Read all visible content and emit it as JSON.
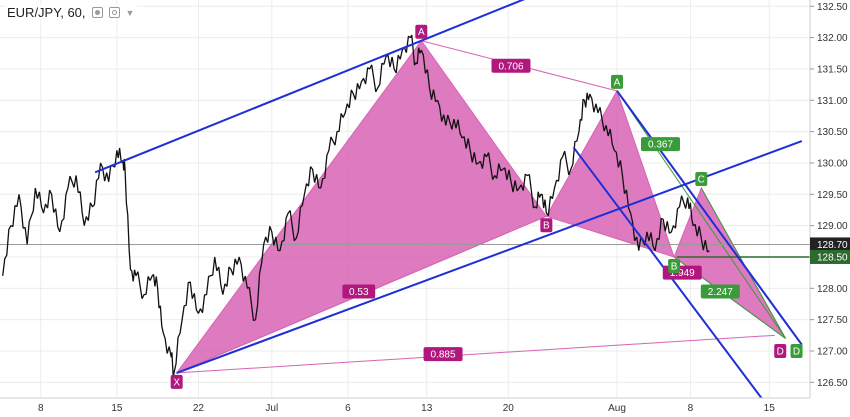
{
  "header": {
    "symbol": "EUR/JPY, 60,"
  },
  "chart_data": {
    "type": "line",
    "style": "candlestick-approx",
    "ylim": [
      126.25,
      132.6
    ],
    "y_ticks": [
      "126.50",
      "127.00",
      "127.50",
      "128.00",
      "128.50",
      "129.00",
      "129.50",
      "130.00",
      "130.50",
      "131.00",
      "131.50",
      "132.00",
      "132.50"
    ],
    "y_tick_values": [
      126.5,
      127,
      127.5,
      128,
      128.5,
      129,
      129.5,
      130,
      130.5,
      131,
      131.5,
      132,
      132.5
    ],
    "x_ticks": [
      "8",
      "15",
      "22",
      "Jul",
      "6",
      "13",
      "20",
      "Aug",
      "8",
      "15"
    ],
    "x_tick_values": [
      2.0,
      4.8,
      7.8,
      10.5,
      13.3,
      16.2,
      19.2,
      23.2,
      25.9,
      28.8
    ],
    "xlim": [
      0.5,
      30.3
    ],
    "price_labels": [
      {
        "text": "128.70",
        "value": 128.7,
        "color": "#222222"
      },
      {
        "text": "128.50",
        "value": 128.5,
        "color": "#2d6a2d"
      }
    ],
    "hline_values": [
      128.7,
      128.5
    ],
    "price_series": [
      [
        0.6,
        128.2
      ],
      [
        0.9,
        129.0
      ],
      [
        1.2,
        129.5
      ],
      [
        1.5,
        128.7
      ],
      [
        1.8,
        129.6
      ],
      [
        2.1,
        129.2
      ],
      [
        2.4,
        129.5
      ],
      [
        2.7,
        128.9
      ],
      [
        3.0,
        129.6
      ],
      [
        3.3,
        129.8
      ],
      [
        3.6,
        129.0
      ],
      [
        3.9,
        129.3
      ],
      [
        4.2,
        130.0
      ],
      [
        4.5,
        129.7
      ],
      [
        4.8,
        130.2
      ],
      [
        5.0,
        130.0
      ],
      [
        5.1,
        129.9
      ],
      [
        5.3,
        128.3
      ],
      [
        5.5,
        128.2
      ],
      [
        5.8,
        127.9
      ],
      [
        6.1,
        128.2
      ],
      [
        6.3,
        128.0
      ],
      [
        6.5,
        127.3
      ],
      [
        6.8,
        126.9
      ],
      [
        6.9,
        126.65
      ],
      [
        7.2,
        127.5
      ],
      [
        7.5,
        128.1
      ],
      [
        7.8,
        127.6
      ],
      [
        8.1,
        127.9
      ],
      [
        8.4,
        128.5
      ],
      [
        8.7,
        127.9
      ],
      [
        9.0,
        128.3
      ],
      [
        9.3,
        128.5
      ],
      [
        9.6,
        128.0
      ],
      [
        9.9,
        127.5
      ],
      [
        10.2,
        128.7
      ],
      [
        10.5,
        128.9
      ],
      [
        10.8,
        128.6
      ],
      [
        11.1,
        129.2
      ],
      [
        11.4,
        128.8
      ],
      [
        11.7,
        129.5
      ],
      [
        12.0,
        129.9
      ],
      [
        12.3,
        129.6
      ],
      [
        12.6,
        130.2
      ],
      [
        12.9,
        130.5
      ],
      [
        13.2,
        130.8
      ],
      [
        13.5,
        131.1
      ],
      [
        13.8,
        131.3
      ],
      [
        14.1,
        131.5
      ],
      [
        14.4,
        131.2
      ],
      [
        14.7,
        131.7
      ],
      [
        15.0,
        131.5
      ],
      [
        15.3,
        131.8
      ],
      [
        15.6,
        132.0
      ],
      [
        15.8,
        131.6
      ],
      [
        16.0,
        131.8
      ],
      [
        16.3,
        131.2
      ],
      [
        16.6,
        131.0
      ],
      [
        16.9,
        130.6
      ],
      [
        17.2,
        130.7
      ],
      [
        17.5,
        130.4
      ],
      [
        17.8,
        130.2
      ],
      [
        18.1,
        130.0
      ],
      [
        18.4,
        130.1
      ],
      [
        18.7,
        129.8
      ],
      [
        19.0,
        129.9
      ],
      [
        19.3,
        129.7
      ],
      [
        19.6,
        129.6
      ],
      [
        19.9,
        129.8
      ],
      [
        20.2,
        129.3
      ],
      [
        20.4,
        129.5
      ],
      [
        20.6,
        129.2
      ],
      [
        20.9,
        129.6
      ],
      [
        21.2,
        130.1
      ],
      [
        21.5,
        129.9
      ],
      [
        21.8,
        130.5
      ],
      [
        22.0,
        131.0
      ],
      [
        22.2,
        131.1
      ],
      [
        22.5,
        130.8
      ],
      [
        22.8,
        130.6
      ],
      [
        23.1,
        130.2
      ],
      [
        23.4,
        129.8
      ],
      [
        23.7,
        129.2
      ],
      [
        24.0,
        128.6
      ],
      [
        24.3,
        128.9
      ],
      [
        24.6,
        128.6
      ],
      [
        24.9,
        129.1
      ],
      [
        25.2,
        128.9
      ],
      [
        25.5,
        129.3
      ],
      [
        25.8,
        129.45
      ],
      [
        26.0,
        129.0
      ],
      [
        26.3,
        128.8
      ],
      [
        26.6,
        128.6
      ]
    ],
    "pattern_fill_color": "#d863b4",
    "harmonic_triangles": [
      {
        "points": [
          [
            7.0,
            126.65
          ],
          [
            16.0,
            131.95
          ],
          [
            20.6,
            129.15
          ]
        ]
      },
      {
        "points": [
          [
            20.6,
            129.15
          ],
          [
            23.2,
            131.15
          ],
          [
            25.3,
            128.5
          ]
        ]
      },
      {
        "points": [
          [
            25.3,
            128.5
          ],
          [
            26.3,
            129.6
          ],
          [
            29.4,
            127.2
          ]
        ]
      }
    ],
    "points": [
      {
        "label": "X",
        "x": 7.0,
        "y": 126.65,
        "color": "#b0187e",
        "pos": "below"
      },
      {
        "label": "A",
        "x": 16.0,
        "y": 131.95,
        "color": "#b0187e",
        "pos": "above"
      },
      {
        "label": "B",
        "x": 20.6,
        "y": 129.15,
        "color": "#b0187e",
        "pos": "below"
      },
      {
        "label": "A",
        "x": 23.2,
        "y": 131.15,
        "color": "#3a9b3a",
        "pos": "above"
      },
      {
        "label": "B",
        "x": 25.3,
        "y": 128.5,
        "color": "#3a9b3a",
        "pos": "below"
      },
      {
        "label": "C",
        "x": 26.3,
        "y": 129.6,
        "color": "#3a9b3a",
        "pos": "above"
      },
      {
        "label": "D",
        "x": 28.8,
        "y": 127.0,
        "color": "#b0187e",
        "pos": "right"
      },
      {
        "label": "D",
        "x": 29.4,
        "y": 127.0,
        "color": "#3a9b3a",
        "pos": "right"
      }
    ],
    "ratios": [
      {
        "text": "0.706",
        "x": 19.3,
        "y": 131.55,
        "color": "#b0187e"
      },
      {
        "text": "0.53",
        "x": 13.7,
        "y": 127.95,
        "color": "#b0187e"
      },
      {
        "text": "0.885",
        "x": 16.8,
        "y": 126.95,
        "color": "#b0187e"
      },
      {
        "text": "0.367",
        "x": 24.8,
        "y": 130.3,
        "color": "#3a9b3a"
      },
      {
        "text": "1.949",
        "x": 25.6,
        "y": 128.25,
        "color": "#b0187e"
      },
      {
        "text": "2.247",
        "x": 27.0,
        "y": 127.95,
        "color": "#3a9b3a"
      }
    ],
    "ratio_lines": [
      {
        "from": [
          16.0,
          131.95
        ],
        "to": [
          23.2,
          131.15
        ],
        "color": "#d863b4"
      },
      {
        "from": [
          7.0,
          126.65
        ],
        "to": [
          29.0,
          127.25
        ],
        "color": "#d863b4"
      },
      {
        "from": [
          7.0,
          126.65
        ],
        "to": [
          20.6,
          129.15
        ],
        "color": "#d863b4"
      },
      {
        "from": [
          25.3,
          128.5
        ],
        "to": [
          29.4,
          127.2
        ],
        "color": "#3a9b3a"
      },
      {
        "from": [
          23.2,
          131.15
        ],
        "to": [
          29.4,
          127.2
        ],
        "color": "#3a9b3a"
      },
      {
        "from": [
          26.3,
          129.6
        ],
        "to": [
          29.4,
          127.2
        ],
        "color": "#3a9b3a"
      }
    ],
    "trend_lines": [
      {
        "from": [
          4.0,
          129.85
        ],
        "to": [
          22.0,
          133.0
        ],
        "color": "#1f2fd6"
      },
      {
        "from": [
          7.0,
          126.65
        ],
        "to": [
          30.0,
          130.35
        ],
        "color": "#1f2fd6"
      },
      {
        "from": [
          23.2,
          131.15
        ],
        "to": [
          30.0,
          127.1
        ],
        "color": "#1f2fd6"
      },
      {
        "from": [
          21.6,
          130.25
        ],
        "to": [
          28.6,
          126.2
        ],
        "color": "#1f2fd6"
      }
    ],
    "grid": true,
    "grid_color": "#ececec"
  }
}
